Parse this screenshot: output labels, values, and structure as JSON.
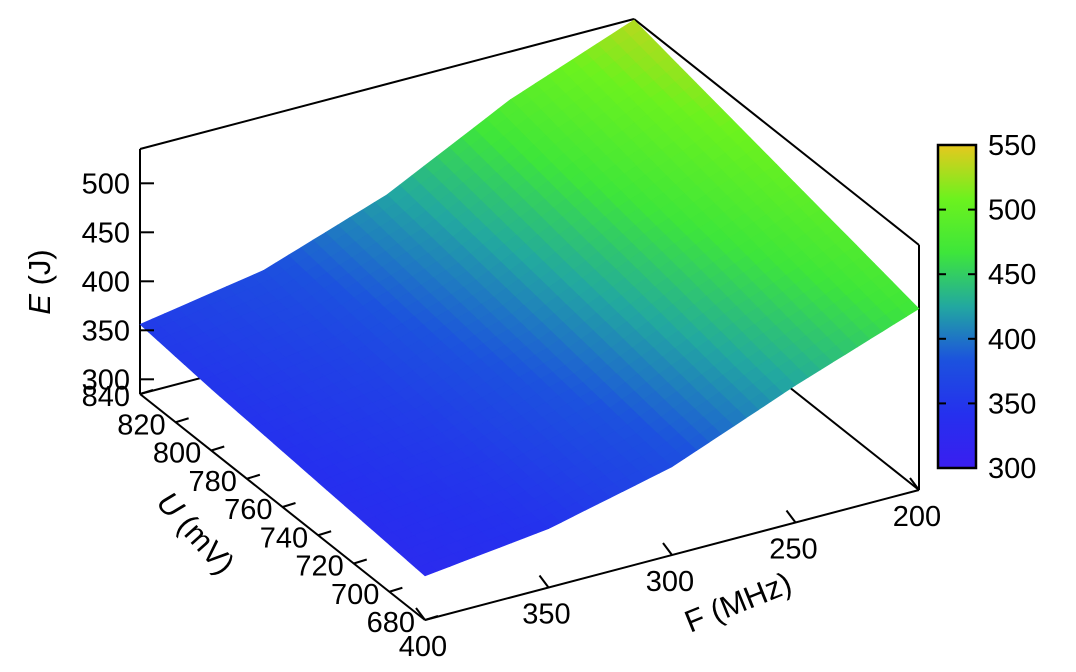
{
  "chart_data": {
    "type": "surface",
    "title": "",
    "axes": {
      "z": {
        "title_italic": "E",
        "title_rest": " (J)",
        "ticks": [
          300,
          350,
          400,
          450,
          500
        ],
        "range": [
          285,
          535
        ]
      },
      "u": {
        "title_italic": "U",
        "title_rest": " (mV)",
        "ticks": [
          680,
          700,
          720,
          740,
          760,
          780,
          800,
          820,
          840
        ],
        "range": [
          680,
          840
        ]
      },
      "f": {
        "title": "F (MHz)",
        "ticks": [
          200,
          250,
          300,
          350,
          400
        ],
        "range": [
          200,
          400
        ]
      }
    },
    "colorbar": {
      "ticks": [
        300,
        350,
        400,
        450,
        500,
        550
      ],
      "range": [
        300,
        550
      ],
      "colors": [
        "#3a1ef0",
        "#2530ee",
        "#1c52de",
        "#22a8a0",
        "#3ee63a",
        "#6cf21e",
        "#e6c81e"
      ]
    },
    "surface": {
      "u_values": [
        680,
        700,
        720,
        740,
        760,
        780,
        800,
        820,
        840
      ],
      "f_values": [
        400,
        350,
        300,
        250,
        200
      ],
      "e_values_J": [
        [
          330,
          345,
          375,
          425,
          470
        ],
        [
          333,
          348,
          380,
          432,
          478
        ],
        [
          336,
          352,
          386,
          440,
          486
        ],
        [
          339,
          356,
          392,
          448,
          494
        ],
        [
          342,
          360,
          398,
          455,
          502
        ],
        [
          345,
          364,
          404,
          462,
          510
        ],
        [
          348,
          368,
          410,
          470,
          518
        ],
        [
          352,
          373,
          416,
          478,
          526
        ],
        [
          356,
          378,
          422,
          486,
          534
        ]
      ]
    }
  }
}
